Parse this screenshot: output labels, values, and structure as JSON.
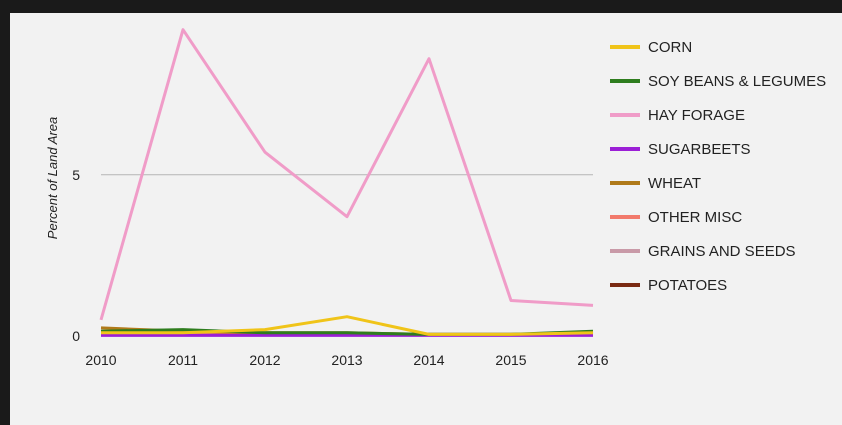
{
  "header": {
    "partial_text": ""
  },
  "chart_data": {
    "type": "line",
    "title": "",
    "xlabel": "",
    "ylabel": "Percent of Land Area",
    "x": [
      "2010",
      "2011",
      "2012",
      "2013",
      "2014",
      "2015",
      "2016"
    ],
    "ylim": [
      0,
      9.8
    ],
    "yticks": [
      {
        "label": "0",
        "value": 0
      },
      {
        "label": "5",
        "value": 5
      }
    ],
    "grid": true,
    "legend_position": "right",
    "series": [
      {
        "name": "CORN",
        "color": "#f0c419",
        "values": [
          0.1,
          0.1,
          0.2,
          0.6,
          0.05,
          0.05,
          0.1
        ]
      },
      {
        "name": "SOY BEANS & LEGUMES",
        "color": "#2e7d1e",
        "values": [
          0.15,
          0.2,
          0.1,
          0.1,
          0.05,
          0.05,
          0.15
        ]
      },
      {
        "name": "HAY FORAGE",
        "color": "#f09cc8",
        "values": [
          0.5,
          9.5,
          5.7,
          3.7,
          8.6,
          1.1,
          0.95
        ]
      },
      {
        "name": "SUGARBEETS",
        "color": "#9b1fd6",
        "values": [
          0.02,
          0.02,
          0.02,
          0.02,
          0.02,
          0.02,
          0.02
        ]
      },
      {
        "name": "WHEAT",
        "color": "#b07a1a",
        "values": [
          0.25,
          0.15,
          0.1,
          0.1,
          0.05,
          0.05,
          0.1
        ]
      },
      {
        "name": "OTHER MISC",
        "color": "#f27a6c",
        "values": [
          0.03,
          0.03,
          0.03,
          0.03,
          0.03,
          0.03,
          0.03
        ]
      },
      {
        "name": "GRAINS AND SEEDS",
        "color": "#c99aa8",
        "values": [
          0.05,
          0.05,
          0.05,
          0.05,
          0.05,
          0.05,
          0.05
        ]
      },
      {
        "name": "POTATOES",
        "color": "#7a2a12",
        "values": [
          0.05,
          0.05,
          0.05,
          0.05,
          0.05,
          0.05,
          0.05
        ]
      }
    ]
  }
}
